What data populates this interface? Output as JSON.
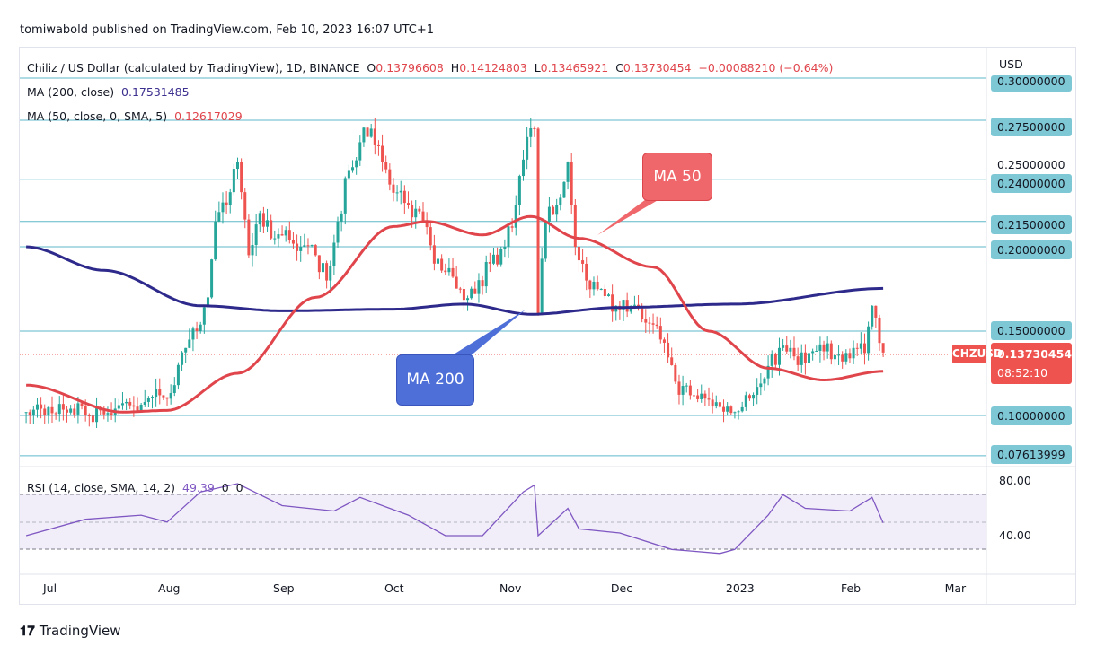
{
  "publisher": "tomiwabold published on TradingView.com, Feb 10, 2023 16:07 UTC+1",
  "legend": {
    "symbol": "Chiliz / US Dollar (calculated by TradingView), 1D, BINANCE",
    "o_label": "O",
    "o": "0.13796608",
    "h_label": "H",
    "h": "0.14124803",
    "l_label": "L",
    "l": "0.13465921",
    "c_label": "C",
    "c": "0.13730454",
    "change": "−0.00088210 (−0.64%)",
    "ma200_label": "MA (200, close)",
    "ma200_value": "0.17531485",
    "ma50_label": "MA (50, close, 0, SMA, 5)",
    "ma50_value": "0.12617029",
    "rsi_label": "RSI (14, close, SMA, 14, 2)",
    "rsi_value": "49.39",
    "rsi_extra1": "0",
    "rsi_extra2": "0"
  },
  "price_axis": {
    "currency": "USD",
    "levels": [
      "0.30000000",
      "0.27500000",
      "0.25000000",
      "0.24000000",
      "0.21500000",
      "0.20000000",
      "0.15000000",
      "0.10000000",
      "0.07613999"
    ],
    "last_price": "0.13730454",
    "countdown": "08:52:10",
    "symbol_tag": "CHZUSD"
  },
  "rsi_axis": [
    "80.00",
    "40.00"
  ],
  "time_axis": [
    {
      "label": "Jul",
      "date": "2022-07-01"
    },
    {
      "label": "Aug",
      "date": "2022-08-01"
    },
    {
      "label": "Sep",
      "date": "2022-09-01"
    },
    {
      "label": "Oct",
      "date": "2022-10-01"
    },
    {
      "label": "Nov",
      "date": "2022-11-01"
    },
    {
      "label": "Dec",
      "date": "2022-12-01"
    },
    {
      "label": "2023",
      "date": "2023-01-01"
    },
    {
      "label": "Feb",
      "date": "2023-02-01"
    },
    {
      "label": "Mar",
      "date": "2023-03-01"
    }
  ],
  "annotations": {
    "ma50": "MA 50",
    "ma200": "MA 200"
  },
  "brand": "TradingView",
  "colors": {
    "up": "#26a69a",
    "down": "#ef5350",
    "ma50": "#e0454c",
    "ma200": "#2e2a8c",
    "rsi": "#7e57c2",
    "level": "#5fb9c9",
    "callout_red": "#f0676b",
    "callout_blue": "#4f6fd8"
  },
  "chart_data": {
    "type": "candlestick",
    "ylim": [
      0.07,
      0.3
    ],
    "horizontal_levels": [
      0.3,
      0.275,
      0.24,
      0.215,
      0.2,
      0.15,
      0.1,
      0.07613999
    ],
    "close": [
      [
        "2022-06-24",
        0.102
      ],
      [
        "2022-06-28",
        0.104
      ],
      [
        "2022-07-02",
        0.101
      ],
      [
        "2022-07-06",
        0.104
      ],
      [
        "2022-07-10",
        0.1
      ],
      [
        "2022-07-14",
        0.103
      ],
      [
        "2022-07-18",
        0.104
      ],
      [
        "2022-07-22",
        0.106
      ],
      [
        "2022-07-26",
        0.108
      ],
      [
        "2022-07-30",
        0.112
      ],
      [
        "2022-08-03",
        0.118
      ],
      [
        "2022-08-06",
        0.14
      ],
      [
        "2022-08-09",
        0.15
      ],
      [
        "2022-08-12",
        0.17
      ],
      [
        "2022-08-14",
        0.215
      ],
      [
        "2022-08-17",
        0.225
      ],
      [
        "2022-08-20",
        0.25
      ],
      [
        "2022-08-23",
        0.195
      ],
      [
        "2022-08-26",
        0.22
      ],
      [
        "2022-08-30",
        0.205
      ],
      [
        "2022-09-02",
        0.21
      ],
      [
        "2022-09-06",
        0.2
      ],
      [
        "2022-09-10",
        0.195
      ],
      [
        "2022-09-13",
        0.18
      ],
      [
        "2022-09-16",
        0.215
      ],
      [
        "2022-09-19",
        0.245
      ],
      [
        "2022-09-22",
        0.262
      ],
      [
        "2022-09-25",
        0.27
      ],
      [
        "2022-09-28",
        0.25
      ],
      [
        "2022-10-01",
        0.232
      ],
      [
        "2022-10-05",
        0.225
      ],
      [
        "2022-10-09",
        0.215
      ],
      [
        "2022-10-12",
        0.19
      ],
      [
        "2022-10-15",
        0.185
      ],
      [
        "2022-10-19",
        0.175
      ],
      [
        "2022-10-23",
        0.172
      ],
      [
        "2022-10-27",
        0.19
      ],
      [
        "2022-10-31",
        0.2
      ],
      [
        "2022-11-03",
        0.225
      ],
      [
        "2022-11-06",
        0.265
      ],
      [
        "2022-11-08",
        0.27
      ],
      [
        "2022-11-09",
        0.16
      ],
      [
        "2022-11-11",
        0.215
      ],
      [
        "2022-11-14",
        0.225
      ],
      [
        "2022-11-17",
        0.25
      ],
      [
        "2022-11-19",
        0.2
      ],
      [
        "2022-11-22",
        0.18
      ],
      [
        "2022-11-26",
        0.175
      ],
      [
        "2022-11-30",
        0.165
      ],
      [
        "2022-12-04",
        0.165
      ],
      [
        "2022-12-08",
        0.155
      ],
      [
        "2022-12-12",
        0.145
      ],
      [
        "2022-12-16",
        0.12
      ],
      [
        "2022-12-20",
        0.112
      ],
      [
        "2022-12-24",
        0.11
      ],
      [
        "2022-12-28",
        0.105
      ],
      [
        "2023-01-01",
        0.102
      ],
      [
        "2023-01-05",
        0.11
      ],
      [
        "2023-01-09",
        0.122
      ],
      [
        "2023-01-13",
        0.14
      ],
      [
        "2023-01-17",
        0.135
      ],
      [
        "2023-01-21",
        0.137
      ],
      [
        "2023-01-25",
        0.138
      ],
      [
        "2023-01-29",
        0.136
      ],
      [
        "2023-02-02",
        0.14
      ],
      [
        "2023-02-05",
        0.137
      ],
      [
        "2023-02-07",
        0.165
      ],
      [
        "2023-02-08",
        0.158
      ],
      [
        "2023-02-10",
        0.1373
      ]
    ],
    "ma200": [
      [
        "2022-06-24",
        0.2
      ],
      [
        "2022-07-15",
        0.186
      ],
      [
        "2022-08-10",
        0.165
      ],
      [
        "2022-09-01",
        0.162
      ],
      [
        "2022-10-01",
        0.163
      ],
      [
        "2022-10-20",
        0.166
      ],
      [
        "2022-11-07",
        0.16
      ],
      [
        "2022-12-01",
        0.164
      ],
      [
        "2023-01-01",
        0.166
      ],
      [
        "2023-02-10",
        0.1753
      ]
    ],
    "ma50": [
      [
        "2022-06-24",
        0.118
      ],
      [
        "2022-07-20",
        0.102
      ],
      [
        "2022-08-01",
        0.103
      ],
      [
        "2022-08-20",
        0.125
      ],
      [
        "2022-09-10",
        0.17
      ],
      [
        "2022-10-01",
        0.212
      ],
      [
        "2022-10-10",
        0.215
      ],
      [
        "2022-10-25",
        0.207
      ],
      [
        "2022-11-07",
        0.218
      ],
      [
        "2022-11-20",
        0.205
      ],
      [
        "2022-12-10",
        0.188
      ],
      [
        "2022-12-25",
        0.15
      ],
      [
        "2023-01-10",
        0.128
      ],
      [
        "2023-01-25",
        0.121
      ],
      [
        "2023-02-10",
        0.1262
      ]
    ],
    "rsi": [
      [
        "2022-06-24",
        40
      ],
      [
        "2022-07-10",
        52
      ],
      [
        "2022-07-25",
        55
      ],
      [
        "2022-08-01",
        50
      ],
      [
        "2022-08-10",
        72
      ],
      [
        "2022-08-20",
        78
      ],
      [
        "2022-09-01",
        62
      ],
      [
        "2022-09-15",
        58
      ],
      [
        "2022-09-22",
        68
      ],
      [
        "2022-10-05",
        55
      ],
      [
        "2022-10-15",
        40
      ],
      [
        "2022-10-25",
        40
      ],
      [
        "2022-11-05",
        72
      ],
      [
        "2022-11-08",
        77
      ],
      [
        "2022-11-09",
        40
      ],
      [
        "2022-11-17",
        60
      ],
      [
        "2022-11-20",
        45
      ],
      [
        "2022-12-01",
        42
      ],
      [
        "2022-12-15",
        30
      ],
      [
        "2022-12-28",
        27
      ],
      [
        "2023-01-01",
        30
      ],
      [
        "2023-01-10",
        55
      ],
      [
        "2023-01-14",
        70
      ],
      [
        "2023-01-20",
        60
      ],
      [
        "2023-02-01",
        58
      ],
      [
        "2023-02-07",
        68
      ],
      [
        "2023-02-10",
        49.39
      ]
    ],
    "rsi_bands": [
      70,
      50,
      30
    ]
  }
}
